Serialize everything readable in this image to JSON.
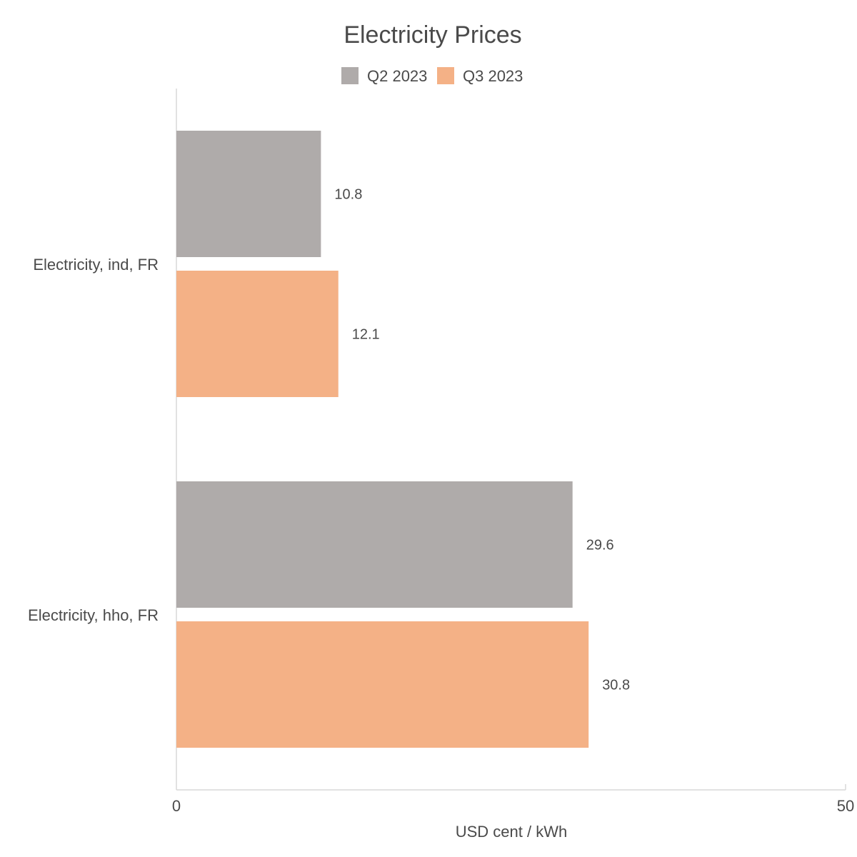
{
  "chart_data": {
    "type": "bar",
    "orientation": "horizontal",
    "title": "Electricity Prices",
    "xlabel": "USD cent / kWh",
    "ylabel": "",
    "xlim": [
      0,
      50
    ],
    "x_ticks": [
      "0",
      "50"
    ],
    "categories": [
      "Electricity, ind, FR",
      "Electricity, hho, FR"
    ],
    "series": [
      {
        "name": "Q2 2023",
        "color": "#afabaa",
        "values": [
          10.8,
          29.6
        ],
        "labels": [
          "10.8",
          "29.6"
        ]
      },
      {
        "name": "Q3 2023",
        "color": "#f4b186",
        "values": [
          12.1,
          30.8
        ],
        "labels": [
          "12.1",
          "30.8"
        ]
      }
    ],
    "legend": "top-center",
    "grid": false
  }
}
